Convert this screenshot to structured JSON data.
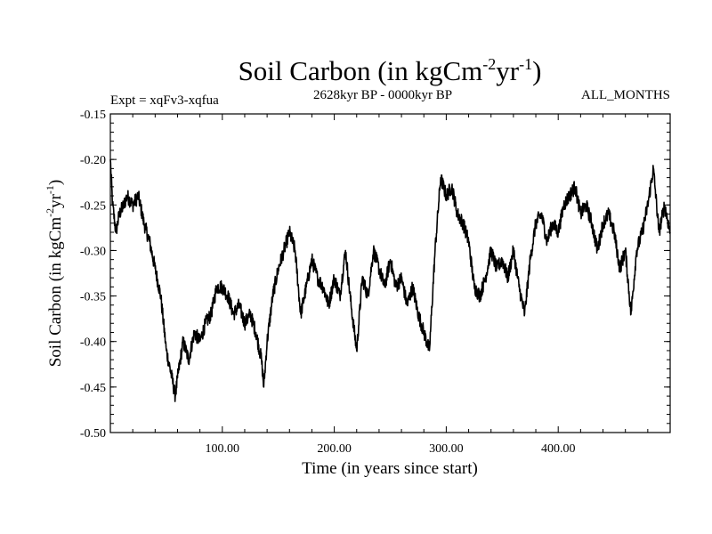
{
  "chart_data": {
    "type": "line",
    "title": {
      "text": "Soil Carbon (in kgCm",
      "sup1": "-2",
      "mid": "yr",
      "sup2": "-1",
      "close": ")"
    },
    "left_caption": "Expt = xqFv3-xqfua",
    "center_caption": "2628kyr BP - 0000kyr BP",
    "right_caption": "ALL_MONTHS",
    "xlabel": "Time (in years since start)",
    "ylabel": {
      "text": "Soil Carbon (in kgCm",
      "sup1": "-2",
      "mid": "yr",
      "sup2": "-1",
      "close": ")"
    },
    "xlim": [
      0,
      500
    ],
    "ylim": [
      -0.5,
      -0.15
    ],
    "x_ticks": [
      {
        "value": 100,
        "label": "100.00"
      },
      {
        "value": 200,
        "label": "200.00"
      },
      {
        "value": 300,
        "label": "300.00"
      },
      {
        "value": 400,
        "label": "400.00"
      }
    ],
    "y_ticks": [
      {
        "value": -0.15,
        "label": "-0.15"
      },
      {
        "value": -0.2,
        "label": "-0.20"
      },
      {
        "value": -0.25,
        "label": "-0.25"
      },
      {
        "value": -0.3,
        "label": "-0.30"
      },
      {
        "value": -0.35,
        "label": "-0.35"
      },
      {
        "value": -0.4,
        "label": "-0.40"
      },
      {
        "value": -0.45,
        "label": "-0.45"
      },
      {
        "value": -0.5,
        "label": "-0.50"
      }
    ],
    "series": [
      {
        "name": "soil carbon",
        "color": "#000000",
        "x": [
          0,
          2,
          5,
          8,
          12,
          15,
          20,
          25,
          30,
          35,
          40,
          45,
          50,
          55,
          58,
          60,
          65,
          70,
          75,
          80,
          85,
          90,
          95,
          100,
          105,
          110,
          115,
          120,
          125,
          130,
          135,
          137,
          140,
          145,
          150,
          155,
          160,
          165,
          170,
          175,
          180,
          185,
          190,
          195,
          200,
          205,
          210,
          215,
          220,
          225,
          230,
          235,
          240,
          245,
          250,
          255,
          260,
          265,
          270,
          275,
          280,
          285,
          290,
          295,
          300,
          305,
          310,
          315,
          320,
          325,
          330,
          335,
          340,
          345,
          350,
          355,
          360,
          365,
          370,
          375,
          380,
          385,
          390,
          395,
          400,
          405,
          410,
          415,
          420,
          425,
          430,
          435,
          440,
          445,
          450,
          455,
          460,
          465,
          470,
          475,
          480,
          485,
          490,
          495,
          500
        ],
        "y": [
          -0.2,
          -0.25,
          -0.28,
          -0.26,
          -0.25,
          -0.24,
          -0.25,
          -0.24,
          -0.27,
          -0.29,
          -0.32,
          -0.35,
          -0.41,
          -0.44,
          -0.46,
          -0.44,
          -0.4,
          -0.42,
          -0.39,
          -0.4,
          -0.38,
          -0.37,
          -0.34,
          -0.34,
          -0.35,
          -0.37,
          -0.36,
          -0.38,
          -0.37,
          -0.39,
          -0.42,
          -0.45,
          -0.4,
          -0.35,
          -0.32,
          -0.3,
          -0.28,
          -0.3,
          -0.37,
          -0.34,
          -0.31,
          -0.33,
          -0.34,
          -0.36,
          -0.33,
          -0.35,
          -0.3,
          -0.36,
          -0.41,
          -0.33,
          -0.35,
          -0.3,
          -0.32,
          -0.34,
          -0.31,
          -0.34,
          -0.33,
          -0.36,
          -0.34,
          -0.37,
          -0.39,
          -0.41,
          -0.3,
          -0.22,
          -0.24,
          -0.23,
          -0.26,
          -0.27,
          -0.29,
          -0.34,
          -0.35,
          -0.33,
          -0.3,
          -0.32,
          -0.31,
          -0.33,
          -0.3,
          -0.34,
          -0.37,
          -0.31,
          -0.27,
          -0.26,
          -0.29,
          -0.27,
          -0.28,
          -0.25,
          -0.24,
          -0.23,
          -0.26,
          -0.25,
          -0.27,
          -0.3,
          -0.27,
          -0.26,
          -0.28,
          -0.32,
          -0.3,
          -0.37,
          -0.3,
          -0.28,
          -0.25,
          -0.21,
          -0.28,
          -0.25,
          -0.28
        ]
      }
    ]
  }
}
